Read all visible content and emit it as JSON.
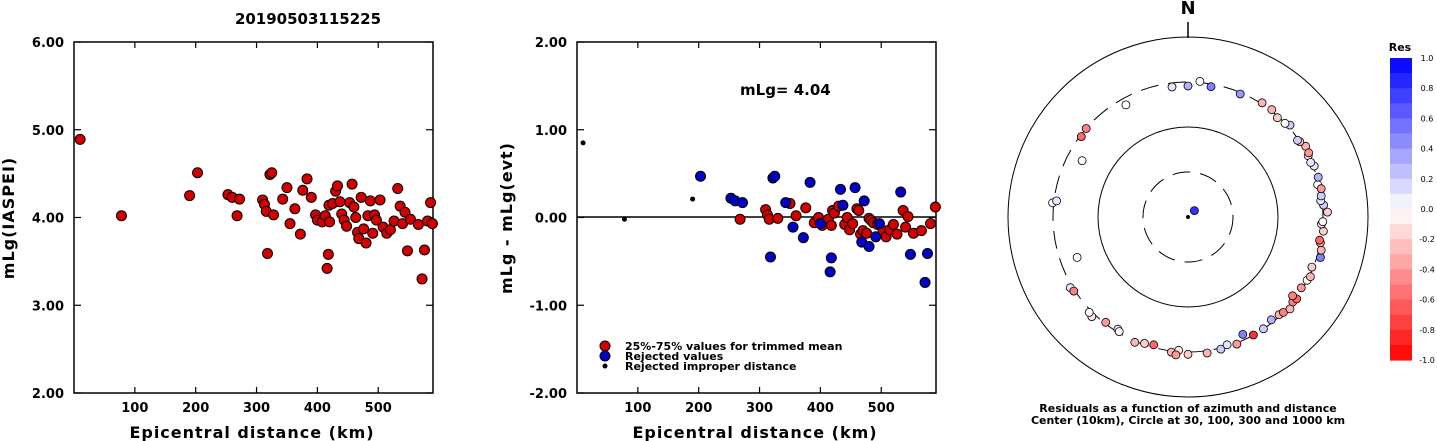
{
  "title": "20190503115225",
  "chart_data": [
    {
      "type": "scatter",
      "id": "left",
      "xlabel": "Epicentral distance (km)",
      "ylabel": "mLg(IASPEI)",
      "xlim": [
        0,
        590
      ],
      "ylim": [
        2.0,
        6.0
      ],
      "xticks": [
        "100",
        "200",
        "300",
        "400",
        "500"
      ],
      "yticks": [
        "2.00",
        "3.00",
        "4.00",
        "5.00",
        "6.00"
      ],
      "series": [
        {
          "color": "#d40000",
          "points": [
            [
              10,
              4.89
            ],
            [
              78,
              4.02
            ],
            [
              190,
              4.25
            ],
            [
              203,
              4.51
            ],
            [
              253,
              4.26
            ],
            [
              260,
              4.23
            ],
            [
              268,
              4.02
            ],
            [
              272,
              4.21
            ],
            [
              310,
              4.2
            ],
            [
              313,
              4.15
            ],
            [
              316,
              4.07
            ],
            [
              318,
              3.59
            ],
            [
              322,
              4.49
            ],
            [
              325,
              4.51
            ],
            [
              328,
              4.03
            ],
            [
              343,
              4.21
            ],
            [
              350,
              4.34
            ],
            [
              355,
              3.93
            ],
            [
              363,
              4.1
            ],
            [
              372,
              3.81
            ],
            [
              376,
              4.31
            ],
            [
              383,
              4.44
            ],
            [
              390,
              4.23
            ],
            [
              397,
              4.03
            ],
            [
              400,
              3.97
            ],
            [
              408,
              3.95
            ],
            [
              413,
              4.02
            ],
            [
              416,
              3.42
            ],
            [
              418,
              3.58
            ],
            [
              419,
              4.14
            ],
            [
              420,
              3.95
            ],
            [
              425,
              4.16
            ],
            [
              430,
              4.3
            ],
            [
              433,
              4.36
            ],
            [
              437,
              4.18
            ],
            [
              440,
              4.04
            ],
            [
              444,
              3.97
            ],
            [
              448,
              3.9
            ],
            [
              453,
              4.17
            ],
            [
              457,
              4.38
            ],
            [
              460,
              4.12
            ],
            [
              463,
              4.0
            ],
            [
              466,
              3.83
            ],
            [
              468,
              3.76
            ],
            [
              472,
              4.23
            ],
            [
              476,
              3.87
            ],
            [
              480,
              3.71
            ],
            [
              483,
              4.02
            ],
            [
              487,
              4.19
            ],
            [
              491,
              3.82
            ],
            [
              494,
              4.03
            ],
            [
              497,
              3.97
            ],
            [
              503,
              4.2
            ],
            [
              508,
              3.89
            ],
            [
              514,
              3.82
            ],
            [
              520,
              3.86
            ],
            [
              526,
              3.96
            ],
            [
              532,
              4.33
            ],
            [
              536,
              4.13
            ],
            [
              540,
              3.93
            ],
            [
              544,
              4.06
            ],
            [
              548,
              3.62
            ],
            [
              553,
              3.98
            ],
            [
              566,
              3.92
            ],
            [
              572,
              3.3
            ],
            [
              576,
              3.63
            ],
            [
              581,
              3.96
            ],
            [
              586,
              4.17
            ],
            [
              589,
              3.93
            ]
          ]
        }
      ]
    },
    {
      "type": "scatter",
      "id": "middle",
      "xlabel": "Epicentral distance (km)",
      "ylabel": "mLg - mLg(evt)",
      "xlim": [
        0,
        590
      ],
      "ylim": [
        -2.0,
        2.0
      ],
      "xticks": [
        "100",
        "200",
        "300",
        "400",
        "500"
      ],
      "yticks": [
        "-2.00",
        "-1.00",
        "0.00",
        "1.00",
        "2.00"
      ],
      "annotation": "mLg= 4.04",
      "series": [
        {
          "name": "25%-75% values for trimmed mean",
          "color": "#d40000",
          "points": [
            [
              268,
              -0.02
            ],
            [
              310,
              0.09
            ],
            [
              313,
              0.03
            ],
            [
              316,
              -0.02
            ],
            [
              330,
              -0.01
            ],
            [
              350,
              0.16
            ],
            [
              360,
              0.02
            ],
            [
              376,
              0.11
            ],
            [
              390,
              -0.06
            ],
            [
              397,
              0.0
            ],
            [
              403,
              -0.09
            ],
            [
              408,
              -0.05
            ],
            [
              413,
              -0.02
            ],
            [
              418,
              -0.09
            ],
            [
              420,
              0.08
            ],
            [
              423,
              0.05
            ],
            [
              430,
              0.13
            ],
            [
              440,
              -0.08
            ],
            [
              444,
              0.0
            ],
            [
              448,
              -0.14
            ],
            [
              453,
              -0.07
            ],
            [
              460,
              0.1
            ],
            [
              463,
              0.08
            ],
            [
              466,
              -0.19
            ],
            [
              470,
              -0.15
            ],
            [
              476,
              -0.18
            ],
            [
              480,
              -0.01
            ],
            [
              483,
              -0.03
            ],
            [
              487,
              -0.06
            ],
            [
              494,
              -0.08
            ],
            [
              503,
              -0.15
            ],
            [
              508,
              -0.22
            ],
            [
              514,
              -0.14
            ],
            [
              520,
              -0.08
            ],
            [
              526,
              -0.19
            ],
            [
              536,
              0.08
            ],
            [
              540,
              -0.11
            ],
            [
              544,
              0.01
            ],
            [
              553,
              -0.18
            ],
            [
              566,
              -0.15
            ],
            [
              581,
              -0.07
            ],
            [
              589,
              0.12
            ]
          ]
        },
        {
          "name": "Rejected values",
          "color": "#0000c8",
          "points": [
            [
              203,
              0.47
            ],
            [
              253,
              0.22
            ],
            [
              260,
              0.19
            ],
            [
              272,
              0.17
            ],
            [
              318,
              -0.45
            ],
            [
              322,
              0.45
            ],
            [
              325,
              0.47
            ],
            [
              343,
              0.17
            ],
            [
              355,
              -0.11
            ],
            [
              372,
              -0.23
            ],
            [
              383,
              0.4
            ],
            [
              400,
              -0.07
            ],
            [
              416,
              -0.62
            ],
            [
              418,
              -0.46
            ],
            [
              433,
              0.32
            ],
            [
              437,
              0.14
            ],
            [
              457,
              0.34
            ],
            [
              468,
              -0.28
            ],
            [
              472,
              0.19
            ],
            [
              480,
              -0.33
            ],
            [
              491,
              -0.22
            ],
            [
              497,
              -0.07
            ],
            [
              532,
              0.29
            ],
            [
              548,
              -0.42
            ],
            [
              572,
              -0.74
            ],
            [
              576,
              -0.41
            ]
          ]
        },
        {
          "name": "Rejected improper distance",
          "color": "#000000",
          "small": true,
          "points": [
            [
              10,
              0.85
            ],
            [
              78,
              -0.02
            ],
            [
              190,
              0.21
            ]
          ]
        }
      ]
    },
    {
      "type": "scatter",
      "id": "polar",
      "north_label": "N",
      "caption_line1": "Residuals as a function of azimuth and distance",
      "caption_line2": "Center (10km), Circle at 30, 100, 300 and 1000 km",
      "colorbar_title": "Res",
      "colorbar_ticks": [
        "1.0",
        "0.8",
        "0.6",
        "0.4",
        "0.2",
        "0.0",
        "-0.2",
        "-0.4",
        "-0.6",
        "-0.8",
        "-1.0"
      ],
      "points_note": "each point: [azimuth deg, distance km, residual]",
      "points": [
        [
          45,
          10,
          0.8
        ],
        [
          -49,
          310,
          -0.5
        ],
        [
          -53,
          300,
          -0.6
        ],
        [
          -84,
          320,
          0.0
        ],
        [
          -83,
          290,
          0.1
        ],
        [
          -62,
          210,
          0.0
        ],
        [
          -110,
          200,
          0.0
        ],
        [
          -121,
          330,
          0.1
        ],
        [
          -123,
          320,
          -0.5
        ],
        [
          -136,
          340,
          -0.1
        ],
        [
          -134,
          330,
          0.0
        ],
        [
          -142,
          300,
          -0.4
        ],
        [
          -148,
          290,
          0.1
        ],
        [
          -149,
          300,
          0.0
        ],
        [
          -157,
          320,
          -0.3
        ],
        [
          -161,
          300,
          -0.2
        ],
        [
          -165,
          290,
          -0.6
        ],
        [
          -173,
          320,
          -0.3
        ],
        [
          -176,
          300,
          -0.1
        ],
        [
          -180,
          330,
          -0.2
        ],
        [
          -175,
          340,
          -0.4
        ],
        [
          172,
          330,
          -0.3
        ],
        [
          166,
          320,
          0.2
        ],
        [
          163,
          300,
          0.1
        ],
        [
          159,
          320,
          -0.4
        ],
        [
          151,
          310,
          -0.8
        ],
        [
          155,
          270,
          0.5
        ],
        [
          146,
          310,
          0.2
        ],
        [
          141,
          290,
          0.3
        ],
        [
          137,
          300,
          -0.3
        ],
        [
          135,
          310,
          -0.5
        ],
        [
          132,
          330,
          -0.3
        ],
        [
          129,
          310,
          -0.5
        ],
        [
          127,
          320,
          -0.6
        ],
        [
          127,
          280,
          -0.5
        ],
        [
          122,
          300,
          -0.4
        ],
        [
          118,
          310,
          0.0
        ],
        [
          116,
          320,
          -0.3
        ],
        [
          112,
          300,
          -0.2
        ],
        [
          107,
          340,
          0.5
        ],
        [
          104,
          330,
          -0.3
        ],
        [
          101,
          310,
          -0.3
        ],
        [
          100,
          300,
          -0.6
        ],
        [
          96,
          320,
          -0.2
        ],
        [
          93,
          300,
          -0.1
        ],
        [
          92,
          310,
          0.0
        ],
        [
          88,
          350,
          -0.2
        ],
        [
          85,
          320,
          0.2
        ],
        [
          83,
          300,
          0.1
        ],
        [
          81,
          310,
          0.2
        ],
        [
          76,
          300,
          0.0
        ],
        [
          68,
          320,
          0.1
        ],
        [
          63,
          310,
          -0.1
        ],
        [
          59,
          330,
          -0.3
        ],
        [
          56,
          310,
          -0.2
        ],
        [
          55,
          300,
          0.2
        ],
        [
          48,
          330,
          0.2
        ],
        [
          46,
          310,
          0.0
        ],
        [
          42,
          300,
          -0.2
        ],
        [
          38,
          320,
          -0.3
        ],
        [
          33,
          320,
          -0.3
        ],
        [
          23,
          300,
          0.4
        ],
        [
          10,
          290,
          0.5
        ],
        [
          0,
          280,
          0.3
        ],
        [
          -7,
          280,
          0.1
        ],
        [
          -29,
          260,
          0.0
        ],
        [
          5,
          320,
          0.0
        ],
        [
          66,
          305,
          0.1
        ],
        [
          73,
          320,
          0.3
        ],
        [
          78,
          320,
          -0.4
        ],
        [
          62,
          325,
          -0.4
        ]
      ]
    }
  ]
}
